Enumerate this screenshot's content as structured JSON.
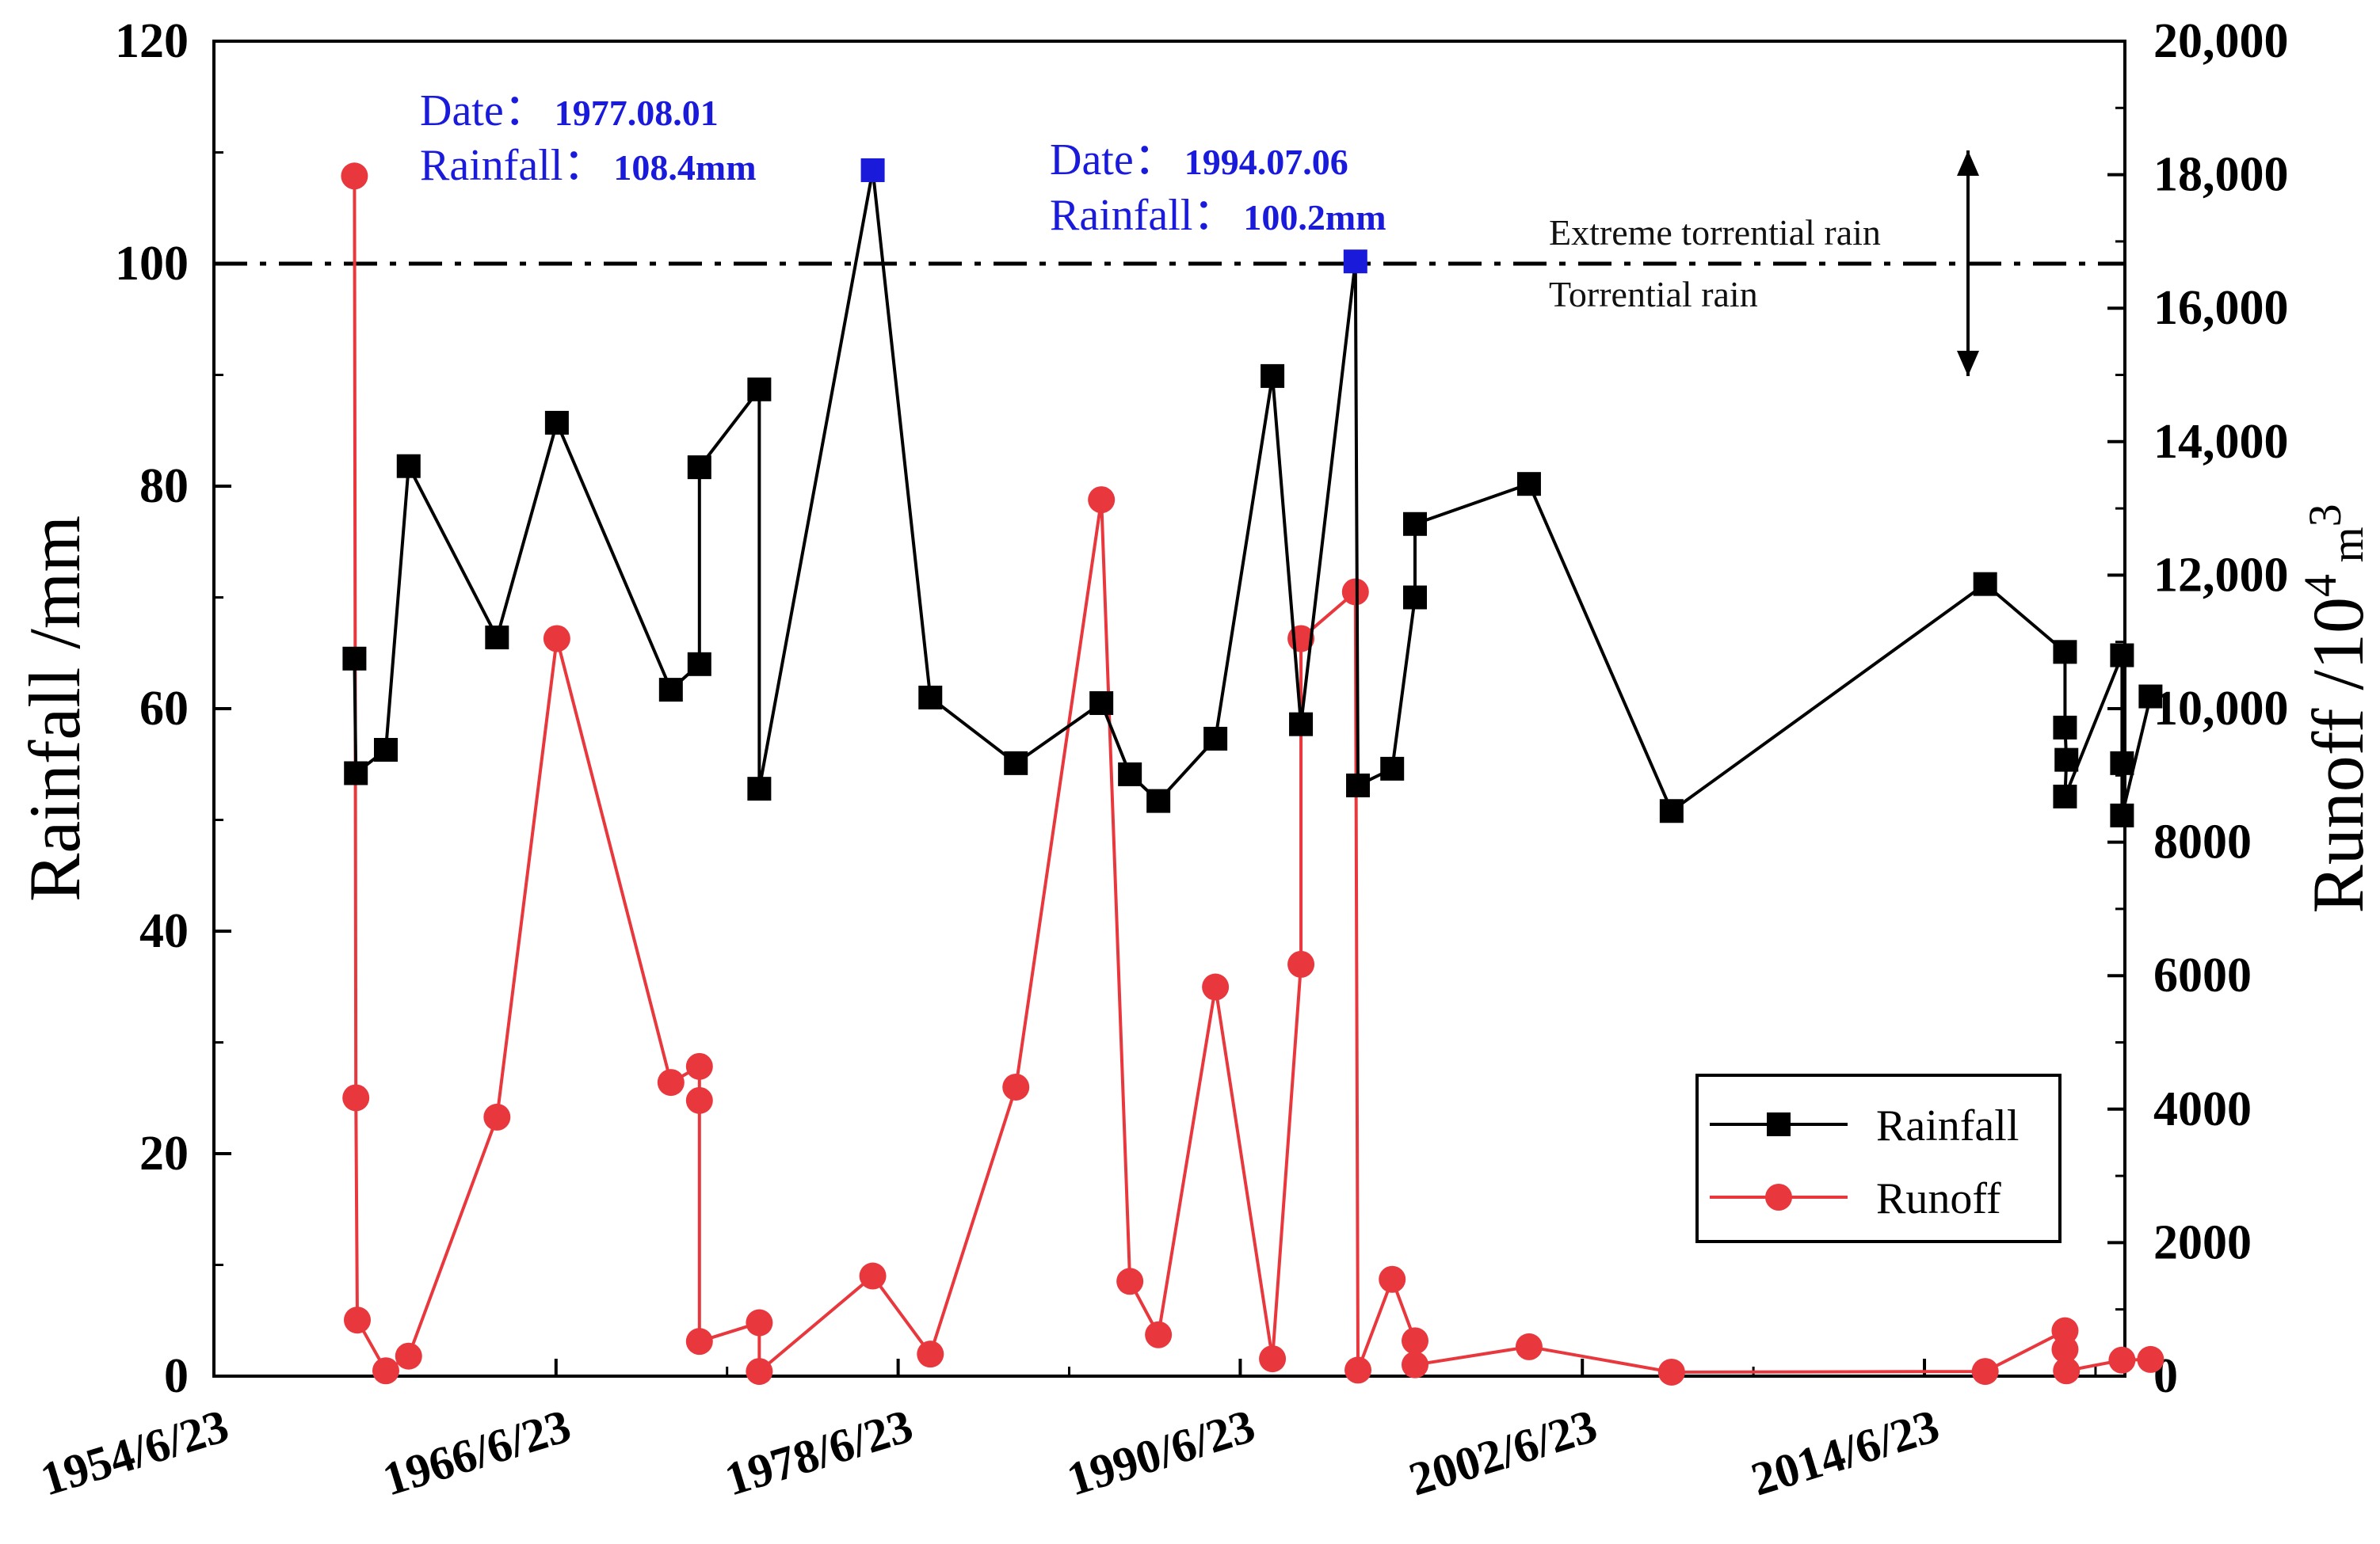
{
  "chart_data": {
    "type": "line",
    "x_axis": {
      "tick_labels": [
        "1954/6/23",
        "1966/6/23",
        "1978/6/23",
        "1990/6/23",
        "2002/6/23",
        "2014/6/23"
      ],
      "ticks_year": [
        1954.47,
        1966.47,
        1978.47,
        1990.47,
        2002.47,
        2014.47
      ],
      "range_year": [
        1954.47,
        2021.5
      ]
    },
    "y_left": {
      "label": "Rainfall /mm",
      "range": [
        0,
        120
      ],
      "tick_values": [
        0,
        20,
        40,
        60,
        80,
        100,
        120
      ],
      "tick_labels": [
        "0",
        "20",
        "40",
        "60",
        "80",
        "100",
        "120"
      ]
    },
    "y_right": {
      "label_main": "Runoff /10",
      "label_sup": "4",
      "label_unit": " m",
      "label_sup2": "3",
      "range": [
        0,
        20000
      ],
      "tick_values": [
        0,
        2000,
        4000,
        6000,
        8000,
        10000,
        12000,
        14000,
        16000,
        18000,
        20000
      ],
      "tick_labels": [
        "0",
        "2000",
        "4000",
        "6000",
        "8000",
        "10,000",
        "12,000",
        "14,000",
        "16,000",
        "18,000",
        "20,000"
      ]
    },
    "series": [
      {
        "name": "Rainfall",
        "axis": "left",
        "color": "#000000",
        "marker": "square",
        "x": [
          1959.4,
          1959.45,
          1960.5,
          1961.3,
          1964.4,
          1966.5,
          1970.5,
          1971.5,
          1971.5,
          1973.6,
          1973.6,
          1977.58,
          1979.6,
          1982.6,
          1985.6,
          1986.6,
          1987.6,
          1989.6,
          1991.6,
          1992.6,
          1994.51,
          1994.6,
          1995.8,
          1996.6,
          1996.6,
          2000.6,
          2005.6,
          2016.6,
          2019.4,
          2019.4,
          2019.45,
          2019.4,
          2021.4,
          2021.4,
          2021.4,
          2022.4
        ],
        "values": [
          64.5,
          54.2,
          56.3,
          81.8,
          66.4,
          85.7,
          61.7,
          64,
          81.7,
          88.7,
          52.8,
          108.4,
          61,
          55.1,
          60.5,
          54.1,
          51.7,
          57.3,
          89.9,
          58.6,
          100.2,
          53.1,
          54.6,
          70,
          76.6,
          80.2,
          50.8,
          71.2,
          65.1,
          58.3,
          55.4,
          52.1,
          64.8,
          55.1,
          50.4,
          61.1
        ]
      },
      {
        "name": "Runoff",
        "axis": "right",
        "color": "#e8383d",
        "marker": "circle",
        "x": [
          1959.4,
          1959.45,
          1959.5,
          1960.5,
          1961.3,
          1964.4,
          1966.5,
          1970.5,
          1971.5,
          1971.5,
          1971.5,
          1973.6,
          1973.6,
          1977.58,
          1979.6,
          1982.6,
          1985.6,
          1986.6,
          1987.6,
          1989.6,
          1991.6,
          1992.6,
          1992.6,
          1994.51,
          1994.6,
          1995.8,
          1996.6,
          1996.6,
          2000.6,
          2005.6,
          2016.6,
          2019.4,
          2019.4,
          2019.45,
          2021.4,
          2022.4
        ],
        "values": [
          17980,
          4170,
          840,
          80,
          300,
          3880,
          11050,
          4400,
          4640,
          4130,
          520,
          800,
          70,
          1500,
          330,
          4330,
          13130,
          1420,
          620,
          5830,
          260,
          6170,
          11050,
          11750,
          90,
          1450,
          530,
          170,
          440,
          60,
          70,
          680,
          400,
          80,
          240,
          250
        ]
      }
    ],
    "threshold": {
      "value": 100,
      "label_above": "Extreme torrential rain",
      "label_below": "Torrential rain"
    },
    "annotations": [
      {
        "date_label": "Date：",
        "date_value": "1977.08.01",
        "rain_label": "Rainfall：",
        "rain_value": "108.4mm",
        "point_x": 1977.58,
        "point_value": 108.4
      },
      {
        "date_label": "Date：",
        "date_value": "1994.07.06",
        "rain_label": "Rainfall：",
        "rain_value": "100.2mm",
        "point_x": 1994.51,
        "point_value": 100.2
      }
    ],
    "highlight_color": "#1a1adb",
    "legend": {
      "position": "bottom-right",
      "entries": [
        "Rainfall",
        "Runoff"
      ]
    }
  }
}
